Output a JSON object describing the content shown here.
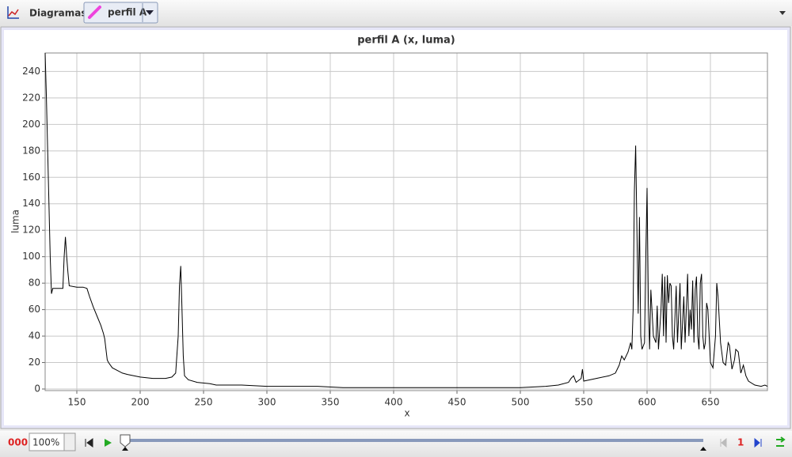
{
  "toolbar": {
    "title": "Diagramas",
    "track": "perfil A"
  },
  "chart_data": {
    "type": "line",
    "title": "perfil A (x, luma)",
    "x_label": "x",
    "y_label": "luma",
    "color": "#000000",
    "grid": true,
    "xlim": [
      125,
      695
    ],
    "ylim": [
      -1.2,
      254
    ],
    "xticks": [
      150,
      200,
      250,
      300,
      350,
      400,
      450,
      500,
      550,
      600,
      650
    ],
    "yticks": [
      0,
      20,
      40,
      60,
      80,
      100,
      120,
      140,
      160,
      180,
      200,
      220,
      240
    ],
    "x": [
      125,
      126,
      127,
      128,
      129,
      130,
      131,
      135,
      139,
      140,
      141,
      142,
      143,
      144,
      150,
      155,
      158,
      160,
      163,
      166,
      169,
      171,
      172,
      173,
      174,
      175,
      178,
      182,
      186,
      190,
      195,
      200,
      210,
      220,
      225,
      228,
      230,
      231,
      232,
      233,
      234,
      235,
      238,
      245,
      255,
      260,
      280,
      300,
      320,
      340,
      360,
      400,
      450,
      500,
      520,
      530,
      538,
      540,
      542,
      544,
      548,
      549,
      550,
      560,
      570,
      575,
      578,
      580,
      582,
      585,
      587,
      588,
      589,
      590,
      591,
      592,
      593,
      594,
      595,
      596,
      598,
      599,
      600,
      601,
      602,
      603,
      605,
      607,
      608,
      609,
      611,
      612,
      613,
      614,
      615,
      616,
      617,
      618,
      619,
      620,
      621,
      623,
      624,
      626,
      627,
      629,
      630,
      632,
      633,
      634,
      635,
      636,
      637,
      638,
      639,
      640,
      641,
      642,
      643,
      644,
      645,
      646,
      647,
      648,
      650,
      652,
      654,
      655,
      656,
      658,
      660,
      662,
      664,
      665,
      667,
      669,
      670,
      672,
      674,
      676,
      678,
      680,
      685,
      690,
      693,
      695
    ],
    "values": [
      254,
      220,
      180,
      140,
      100,
      72,
      76,
      76,
      76,
      100,
      115,
      100,
      88,
      78,
      77,
      77,
      76,
      70,
      62,
      55,
      48,
      42,
      38,
      30,
      22,
      20,
      16,
      14,
      12,
      11,
      10,
      9,
      8,
      8,
      9,
      12,
      40,
      78,
      93,
      60,
      25,
      10,
      7,
      5,
      4,
      3,
      3,
      2,
      2,
      2,
      1,
      1,
      1,
      1,
      2,
      3,
      5,
      8,
      10,
      5,
      8,
      15,
      6,
      8,
      10,
      12,
      18,
      25,
      22,
      28,
      35,
      30,
      60,
      150,
      184,
      120,
      57,
      130,
      40,
      30,
      35,
      100,
      152,
      65,
      30,
      75,
      40,
      35,
      63,
      30,
      60,
      87,
      40,
      85,
      35,
      86,
      65,
      80,
      78,
      40,
      30,
      78,
      35,
      80,
      30,
      70,
      35,
      87,
      40,
      60,
      45,
      82,
      35,
      75,
      85,
      40,
      30,
      80,
      87,
      40,
      30,
      35,
      65,
      60,
      20,
      16,
      40,
      80,
      70,
      35,
      20,
      18,
      35,
      33,
      15,
      22,
      30,
      28,
      12,
      18,
      10,
      6,
      3,
      2,
      3,
      2
    ]
  },
  "player": {
    "frame": "000",
    "zoom": "100%",
    "step": "1"
  }
}
